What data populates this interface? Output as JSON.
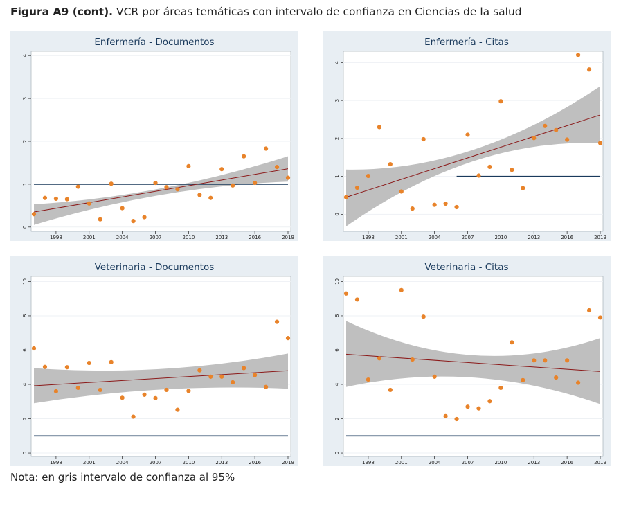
{
  "figure": {
    "label": "Figura A9 (cont).",
    "caption": "VCR por áreas temáticas con intervalo de confianza en Ciencias de la salud",
    "note": "Nota: en gris intervalo de confianza al 95%"
  },
  "colors": {
    "panel_bg": "#e8eef3",
    "plot_bg": "#ffffff",
    "ci_band": "#bfbfbf",
    "trend_line": "#8b1a1a",
    "reference_line": "#1a3a5c",
    "points": "#e8832a",
    "title_text": "#1a3a5c"
  },
  "chart_data": [
    {
      "type": "scatter",
      "title": "Enfermería - Documentos",
      "x": [
        1996,
        1997,
        1998,
        1999,
        2000,
        2001,
        2002,
        2003,
        2004,
        2005,
        2006,
        2007,
        2008,
        2009,
        2010,
        2011,
        2012,
        2013,
        2014,
        2015,
        2016,
        2017,
        2018,
        2019
      ],
      "y": [
        0.3,
        0.68,
        0.66,
        0.65,
        0.94,
        0.55,
        0.18,
        1.01,
        0.44,
        0.14,
        0.23,
        1.03,
        0.93,
        0.88,
        1.42,
        0.75,
        0.68,
        1.35,
        0.97,
        1.65,
        1.03,
        1.83,
        1.4,
        1.15
      ],
      "trend": {
        "x": [
          1996,
          2019
        ],
        "y": [
          0.35,
          1.36
        ]
      },
      "ci_upper": [
        0.53,
        0.9,
        1.65
      ],
      "ci_lower": [
        0.05,
        0.75,
        1.06
      ],
      "reference": 1,
      "xticks": [
        1998,
        2001,
        2004,
        2007,
        2010,
        2013,
        2016,
        2019
      ],
      "yticks": [
        0,
        1,
        2,
        3,
        4
      ],
      "ylim": [
        -0.1,
        4.1
      ],
      "xlim": [
        1996,
        2019
      ]
    },
    {
      "type": "scatter",
      "title": "Enfermería - Citas",
      "x": [
        1996,
        1997,
        1998,
        1999,
        2000,
        2001,
        2002,
        2003,
        2004,
        2005,
        2006,
        2007,
        2008,
        2009,
        2010,
        2011,
        2012,
        2013,
        2014,
        2015,
        2016,
        2017,
        2018,
        2019
      ],
      "y": [
        0.45,
        0.7,
        1.01,
        2.3,
        1.32,
        0.6,
        0.15,
        1.98,
        0.25,
        0.28,
        0.19,
        2.1,
        1.02,
        1.25,
        2.98,
        1.17,
        0.69,
        2.01,
        2.33,
        2.22,
        1.97,
        4.2,
        3.82,
        1.88
      ],
      "trend": {
        "x": [
          1996,
          2019
        ],
        "y": [
          0.45,
          2.62
        ]
      },
      "ci_upper": [
        1.18,
        1.7,
        3.38
      ],
      "ci_lower": [
        -0.32,
        1.4,
        1.87
      ],
      "reference": 1,
      "reference_start": 2006,
      "xticks": [
        1998,
        2001,
        2004,
        2007,
        2010,
        2013,
        2016,
        2019
      ],
      "yticks": [
        0,
        1,
        2,
        3,
        4
      ],
      "ylim": [
        -0.45,
        4.3
      ],
      "xlim": [
        1996,
        2019
      ]
    },
    {
      "type": "scatter",
      "title": "Veterinaria - Documentos",
      "x": [
        1996,
        1997,
        1998,
        1999,
        2000,
        2001,
        2002,
        2003,
        2004,
        2005,
        2006,
        2007,
        2008,
        2009,
        2010,
        2011,
        2012,
        2013,
        2014,
        2015,
        2016,
        2017,
        2018,
        2019
      ],
      "y": [
        6.1,
        5.02,
        3.6,
        5.0,
        3.8,
        5.25,
        3.68,
        5.3,
        3.22,
        2.12,
        3.4,
        3.2,
        3.68,
        2.52,
        3.62,
        4.82,
        4.45,
        4.45,
        4.12,
        4.95,
        4.55,
        3.85,
        7.65,
        6.7
      ],
      "trend": {
        "x": [
          1996,
          2019
        ],
        "y": [
          3.92,
          4.8
        ]
      },
      "ci_upper": [
        4.95,
        4.9,
        5.8
      ],
      "ci_lower": [
        2.9,
        3.7,
        3.75
      ],
      "reference": 1,
      "xticks": [
        1998,
        2001,
        2004,
        2007,
        2010,
        2013,
        2016,
        2019
      ],
      "yticks": [
        0,
        2,
        4,
        6,
        8,
        10
      ],
      "ylim": [
        -0.2,
        10.3
      ],
      "xlim": [
        1996,
        2019
      ]
    },
    {
      "type": "scatter",
      "title": "Veterinaria - Citas",
      "x": [
        1996,
        1997,
        1998,
        1999,
        2000,
        2001,
        2002,
        2003,
        2004,
        2005,
        2006,
        2007,
        2008,
        2009,
        2010,
        2011,
        2012,
        2013,
        2014,
        2015,
        2016,
        2017,
        2018,
        2019
      ],
      "y": [
        9.3,
        8.95,
        4.28,
        5.52,
        3.68,
        9.5,
        5.45,
        7.95,
        4.45,
        2.15,
        1.98,
        2.7,
        2.6,
        3.02,
        3.8,
        6.45,
        4.25,
        5.4,
        5.4,
        4.4,
        5.4,
        4.1,
        8.32,
        7.9
      ],
      "trend": {
        "x": [
          1996,
          2019
        ],
        "y": [
          5.76,
          4.75
        ]
      },
      "ci_upper": [
        7.7,
        5.7,
        6.7
      ],
      "ci_lower": [
        3.85,
        4.4,
        2.85
      ],
      "reference": 1,
      "xticks": [
        1998,
        2001,
        2004,
        2007,
        2010,
        2013,
        2016,
        2019
      ],
      "yticks": [
        0,
        2,
        4,
        6,
        8,
        10
      ],
      "ylim": [
        -0.2,
        10.3
      ],
      "xlim": [
        1996,
        2019
      ]
    }
  ]
}
